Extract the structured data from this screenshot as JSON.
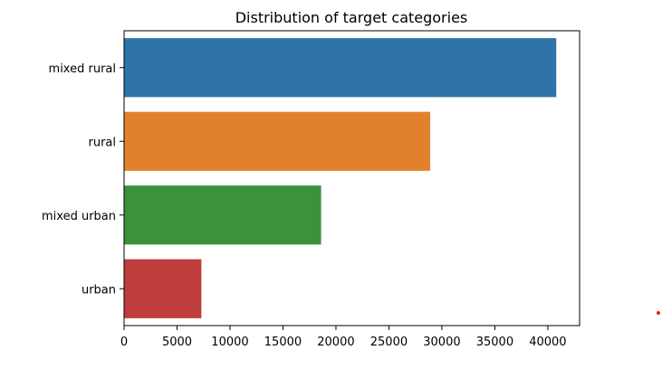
{
  "chart_data": {
    "type": "bar",
    "orientation": "horizontal",
    "title": "Distribution of target categories",
    "xlabel": "",
    "ylabel": "",
    "categories": [
      "mixed rural",
      "rural",
      "mixed urban",
      "urban"
    ],
    "values": [
      40800,
      28900,
      18600,
      7300
    ],
    "colors": [
      "#2f74a8",
      "#e1812c",
      "#3a923a",
      "#c03d3e"
    ],
    "xlim": [
      0,
      43000
    ],
    "xticks": [
      0,
      5000,
      10000,
      15000,
      20000,
      25000,
      30000,
      35000,
      40000
    ],
    "xtick_labels": [
      "0",
      "5000",
      "10000",
      "15000",
      "20000",
      "25000",
      "30000",
      "35000",
      "40000"
    ],
    "grid": false,
    "legend": "none"
  },
  "decor": {
    "dot_color": "#e02020"
  }
}
